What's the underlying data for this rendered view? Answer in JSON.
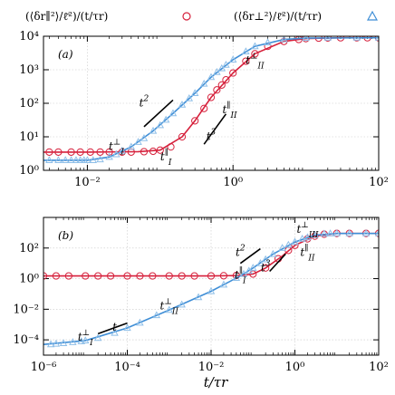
{
  "colors": {
    "red": "#d6213c",
    "blue": "#3f8ed6",
    "light_blue": "#8fbfe8",
    "axis": "#000000",
    "grid": "#c8c8c8"
  },
  "legend": [
    {
      "label": "(⟨δr∥²⟩/ℓ̄²)/(t/τr)",
      "marker": "circle",
      "color": "#d6213c"
    },
    {
      "label": "(⟨δr⊥²⟩/ℓ̄²)/(t/τr)",
      "marker": "triangle",
      "color": "#3f8ed6"
    }
  ],
  "xlabel": "t/τr",
  "chart_data": [
    {
      "type": "line",
      "panel_label": "(a)",
      "x_scale": "log",
      "y_scale": "log",
      "xlim": [
        0.0025,
        100
      ],
      "ylim": [
        1,
        10000
      ],
      "x_ticks": [
        {
          "v": 0.01,
          "label": "10⁻²"
        },
        {
          "v": 1,
          "label": "10⁰"
        },
        {
          "v": 100,
          "label": "10²"
        }
      ],
      "y_ticks": [
        {
          "v": 1,
          "label": "10⁰"
        },
        {
          "v": 10,
          "label": "10¹"
        },
        {
          "v": 100,
          "label": "10²"
        },
        {
          "v": 1000,
          "label": "10³"
        },
        {
          "v": 10000,
          "label": "10⁴"
        }
      ],
      "grid": true,
      "series": [
        {
          "marker": "circle",
          "color": "#d6213c",
          "curve": [
            [
              0.0025,
              3.5
            ],
            [
              0.01,
              3.5
            ],
            [
              0.05,
              3.6
            ],
            [
              0.1,
              4
            ],
            [
              0.2,
              10
            ],
            [
              0.3,
              30
            ],
            [
              0.5,
              150
            ],
            [
              1,
              800
            ],
            [
              2,
              3000
            ],
            [
              5,
              7000
            ],
            [
              10,
              8500
            ],
            [
              30,
              9000
            ],
            [
              100,
              9000
            ]
          ],
          "points": [
            [
              0.003,
              3.5
            ],
            [
              0.004,
              3.5
            ],
            [
              0.006,
              3.5
            ],
            [
              0.008,
              3.5
            ],
            [
              0.011,
              3.5
            ],
            [
              0.015,
              3.5
            ],
            [
              0.02,
              3.5
            ],
            [
              0.03,
              3.5
            ],
            [
              0.04,
              3.5
            ],
            [
              0.06,
              3.6
            ],
            [
              0.08,
              3.7
            ],
            [
              0.1,
              4
            ],
            [
              0.14,
              5
            ],
            [
              0.2,
              10
            ],
            [
              0.3,
              30
            ],
            [
              0.4,
              70
            ],
            [
              0.5,
              150
            ],
            [
              0.6,
              250
            ],
            [
              0.7,
              350
            ],
            [
              0.8,
              500
            ],
            [
              1,
              800
            ],
            [
              1.5,
              1800
            ],
            [
              2,
              3000
            ],
            [
              3,
              5000
            ],
            [
              5,
              7000
            ],
            [
              8,
              8000
            ],
            [
              10,
              8500
            ],
            [
              15,
              8800
            ],
            [
              20,
              8900
            ],
            [
              30,
              9000
            ],
            [
              50,
              9000
            ],
            [
              70,
              9000
            ],
            [
              100,
              9000
            ]
          ]
        },
        {
          "marker": "triangle",
          "color": "#3f8ed6",
          "curve": [
            [
              0.0025,
              2.0
            ],
            [
              0.01,
              2.0
            ],
            [
              0.02,
              2.5
            ],
            [
              0.04,
              5
            ],
            [
              0.08,
              15
            ],
            [
              0.15,
              50
            ],
            [
              0.3,
              200
            ],
            [
              0.5,
              600
            ],
            [
              1,
              2000
            ],
            [
              2,
              5000
            ],
            [
              5,
              8000
            ],
            [
              10,
              8800
            ],
            [
              100,
              9000
            ]
          ],
          "points": [
            [
              0.003,
              2
            ],
            [
              0.004,
              2
            ],
            [
              0.005,
              2
            ],
            [
              0.006,
              2
            ],
            [
              0.007,
              2
            ],
            [
              0.008,
              2
            ],
            [
              0.009,
              2
            ],
            [
              0.01,
              2
            ],
            [
              0.012,
              2
            ],
            [
              0.015,
              2.1
            ],
            [
              0.02,
              2.5
            ],
            [
              0.025,
              3
            ],
            [
              0.03,
              3.8
            ],
            [
              0.04,
              5
            ],
            [
              0.05,
              7
            ],
            [
              0.06,
              9
            ],
            [
              0.08,
              15
            ],
            [
              0.1,
              22
            ],
            [
              0.12,
              32
            ],
            [
              0.15,
              50
            ],
            [
              0.2,
              90
            ],
            [
              0.25,
              140
            ],
            [
              0.3,
              200
            ],
            [
              0.4,
              380
            ],
            [
              0.5,
              600
            ],
            [
              0.6,
              850
            ],
            [
              0.7,
              1100
            ],
            [
              0.8,
              1400
            ],
            [
              1,
              2000
            ],
            [
              1.5,
              3500
            ],
            [
              2,
              5000
            ],
            [
              3,
              6500
            ],
            [
              5,
              8000
            ],
            [
              10,
              8800
            ],
            [
              20,
              9000
            ],
            [
              50,
              9000
            ],
            [
              100,
              9000
            ]
          ]
        }
      ],
      "annotations": [
        {
          "text": "t",
          "sup": "⊥",
          "sub": "II",
          "x": 2,
          "y": 1500
        },
        {
          "text": "t",
          "sup": "∥",
          "sub": "II",
          "x": 0.9,
          "y": 50
        },
        {
          "text": "t",
          "sup": "⊥",
          "sub": "I",
          "x": 0.025,
          "y": 4
        },
        {
          "text": "t",
          "sup": "∥",
          "sub": "I",
          "x": 0.12,
          "y": 2
        },
        {
          "text": "t",
          "sup": "2",
          "x": 0.06,
          "y": 80
        },
        {
          "text": "t",
          "sup": "3",
          "x": 0.5,
          "y": 8
        }
      ],
      "slopes": [
        {
          "label": "t²",
          "exponent": 2,
          "from": [
            0.06,
            20
          ],
          "to": [
            0.15,
            125
          ]
        },
        {
          "label": "t³",
          "exponent": 3,
          "from": [
            0.4,
            6
          ],
          "to": [
            0.8,
            48
          ]
        }
      ]
    },
    {
      "type": "line",
      "panel_label": "(b)",
      "x_scale": "log",
      "y_scale": "log",
      "xlim": [
        1e-06,
        100
      ],
      "ylim": [
        1e-05,
        10000
      ],
      "x_ticks": [
        {
          "v": 1e-06,
          "label": "10⁻⁶"
        },
        {
          "v": 0.0001,
          "label": "10⁻⁴"
        },
        {
          "v": 0.01,
          "label": "10⁻²"
        },
        {
          "v": 1,
          "label": "10⁰"
        },
        {
          "v": 100,
          "label": "10²"
        }
      ],
      "y_ticks": [
        {
          "v": 0.0001,
          "label": "10⁻⁴"
        },
        {
          "v": 0.01,
          "label": "10⁻²"
        },
        {
          "v": 1,
          "label": "10⁰"
        },
        {
          "v": 100,
          "label": "10²"
        }
      ],
      "grid": true,
      "series": [
        {
          "marker": "circle",
          "color": "#d6213c",
          "curve": [
            [
              1e-06,
              1.5
            ],
            [
              0.0001,
              1.5
            ],
            [
              0.01,
              1.5
            ],
            [
              0.05,
              1.6
            ],
            [
              0.1,
              2
            ],
            [
              0.2,
              5
            ],
            [
              0.5,
              30
            ],
            [
              1,
              150
            ],
            [
              3,
              600
            ],
            [
              10,
              900
            ],
            [
              100,
              900
            ]
          ],
          "points": [
            [
              1e-06,
              1.5
            ],
            [
              2e-06,
              1.5
            ],
            [
              4e-06,
              1.5
            ],
            [
              1e-05,
              1.5
            ],
            [
              2e-05,
              1.5
            ],
            [
              4e-05,
              1.5
            ],
            [
              0.0001,
              1.5
            ],
            [
              0.0002,
              1.5
            ],
            [
              0.0004,
              1.5
            ],
            [
              0.001,
              1.5
            ],
            [
              0.002,
              1.5
            ],
            [
              0.004,
              1.5
            ],
            [
              0.01,
              1.5
            ],
            [
              0.02,
              1.55
            ],
            [
              0.04,
              1.6
            ],
            [
              0.1,
              2
            ],
            [
              0.2,
              5
            ],
            [
              0.4,
              20
            ],
            [
              0.7,
              70
            ],
            [
              1,
              150
            ],
            [
              2,
              400
            ],
            [
              3,
              600
            ],
            [
              5,
              800
            ],
            [
              10,
              900
            ],
            [
              20,
              900
            ],
            [
              50,
              900
            ],
            [
              100,
              900
            ]
          ]
        },
        {
          "marker": "triangle",
          "color": "#3f8ed6",
          "curve": [
            [
              1e-06,
              5e-05
            ],
            [
              1e-05,
              9e-05
            ],
            [
              0.0001,
              0.0006
            ],
            [
              0.001,
              0.009
            ],
            [
              0.01,
              0.15
            ],
            [
              0.05,
              1.5
            ],
            [
              0.1,
              5
            ],
            [
              0.3,
              40
            ],
            [
              1,
              250
            ],
            [
              3,
              700
            ],
            [
              10,
              900
            ],
            [
              100,
              900
            ]
          ],
          "points": [
            [
              1.5e-06,
              5e-05
            ],
            [
              2e-06,
              5.5e-05
            ],
            [
              3e-06,
              6e-05
            ],
            [
              5e-06,
              7e-05
            ],
            [
              8e-06,
              8e-05
            ],
            [
              1e-05,
              9e-05
            ],
            [
              2e-05,
              0.00013
            ],
            [
              5e-05,
              0.00028
            ],
            [
              0.0001,
              0.0006
            ],
            [
              0.0002,
              0.0013
            ],
            [
              0.0005,
              0.004
            ],
            [
              0.001,
              0.009
            ],
            [
              0.002,
              0.02
            ],
            [
              0.005,
              0.06
            ],
            [
              0.01,
              0.15
            ],
            [
              0.02,
              0.4
            ],
            [
              0.04,
              1.1
            ],
            [
              0.06,
              2.0
            ],
            [
              0.08,
              3.2
            ],
            [
              0.1,
              5
            ],
            [
              0.15,
              10
            ],
            [
              0.2,
              18
            ],
            [
              0.3,
              40
            ],
            [
              0.5,
              100
            ],
            [
              0.7,
              160
            ],
            [
              1,
              250
            ],
            [
              1.5,
              400
            ],
            [
              2,
              500
            ],
            [
              3,
              700
            ],
            [
              5,
              850
            ],
            [
              7,
              880
            ],
            [
              10,
              900
            ],
            [
              20,
              900
            ],
            [
              50,
              900
            ],
            [
              100,
              900
            ]
          ]
        }
      ],
      "annotations": [
        {
          "text": "t",
          "sup": "⊥",
          "sub": "III",
          "x": 2,
          "y": 1000
        },
        {
          "text": "t",
          "sup": "∥",
          "sub": "II",
          "x": 2,
          "y": 30
        },
        {
          "text": "t",
          "sup": "∥",
          "sub": "I",
          "x": 0.05,
          "y": 1
        },
        {
          "text": "t",
          "sup": "⊥",
          "sub": "II",
          "x": 0.001,
          "y": 0.01
        },
        {
          "text": "t",
          "sup": "⊥",
          "sub": "I",
          "x": 1e-05,
          "y": 9e-05
        },
        {
          "text": "t",
          "x": 5e-05,
          "y": 0.0004
        },
        {
          "text": "t",
          "sup": "2",
          "x": 0.05,
          "y": 30
        },
        {
          "text": "t",
          "sup": "3",
          "x": 0.2,
          "y": 3
        }
      ],
      "slopes": [
        {
          "label": "t",
          "exponent": 1,
          "from": [
            2e-05,
            0.00025
          ],
          "to": [
            0.0001,
            0.00125
          ]
        },
        {
          "label": "t²",
          "exponent": 2,
          "from": [
            0.05,
            10
          ],
          "to": [
            0.15,
            90
          ]
        },
        {
          "label": "t³",
          "exponent": 3,
          "from": [
            0.25,
            3
          ],
          "to": [
            0.6,
            41
          ]
        }
      ]
    }
  ]
}
